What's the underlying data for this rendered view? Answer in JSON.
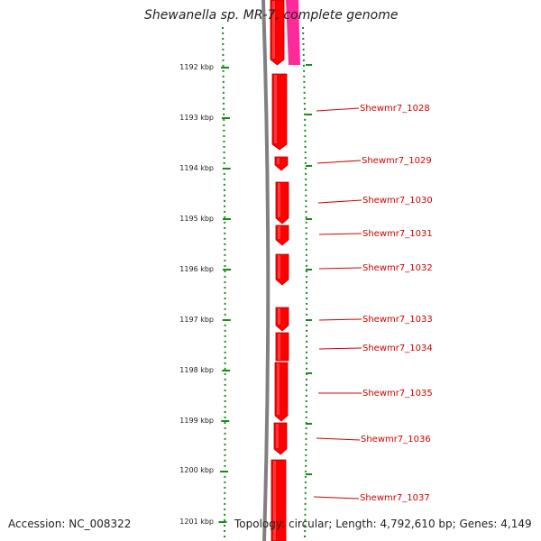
{
  "title": "Shewanella sp. MR-7, complete genome",
  "footer": {
    "accession": "Accession: NC_008322",
    "topology": "Topology: circular; Length: 4,792,610 bp; Genes: 4,149"
  },
  "ruler_ticks": [
    {
      "label": "1192 kbp",
      "kbp": 1192
    },
    {
      "label": "1193 kbp",
      "kbp": 1193
    },
    {
      "label": "1194 kbp",
      "kbp": 1194
    },
    {
      "label": "1195 kbp",
      "kbp": 1195
    },
    {
      "label": "1196 kbp",
      "kbp": 1196
    },
    {
      "label": "1197 kbp",
      "kbp": 1197
    },
    {
      "label": "1198 kbp",
      "kbp": 1198
    },
    {
      "label": "1199 kbp",
      "kbp": 1199
    },
    {
      "label": "1200 kbp",
      "kbp": 1200
    },
    {
      "label": "1201 kbp",
      "kbp": 1201
    }
  ],
  "genes": [
    {
      "id": "Shewmr7_1028"
    },
    {
      "id": "Shewmr7_1029"
    },
    {
      "id": "Shewmr7_1030"
    },
    {
      "id": "Shewmr7_1031"
    },
    {
      "id": "Shewmr7_1032"
    },
    {
      "id": "Shewmr7_1033"
    },
    {
      "id": "Shewmr7_1034"
    },
    {
      "id": "Shewmr7_1035"
    },
    {
      "id": "Shewmr7_1036"
    },
    {
      "id": "Shewmr7_1037"
    }
  ],
  "colors": {
    "gene": "#ff0000",
    "gene_highlight": "#ff6060",
    "gene_shadow": "#b00000",
    "other_strand": "#ff2a9a",
    "backbone": "#808080",
    "dotted": "#1a8a1a",
    "label": "#d40000"
  }
}
